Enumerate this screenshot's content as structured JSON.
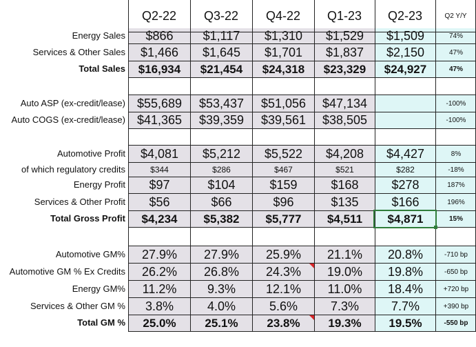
{
  "columns": [
    "Q2-22",
    "Q3-22",
    "Q4-22",
    "Q1-23",
    "Q2-23"
  ],
  "yoy_header": "Q2 Y/Y",
  "rows": [
    {
      "label": "Energy Sales",
      "values": [
        "$866",
        "$1,117",
        "$1,310",
        "$1,529",
        "$1,509"
      ],
      "yoy": "74%",
      "bold": false,
      "small": false
    },
    {
      "label": "Services & Other Sales",
      "values": [
        "$1,466",
        "$1,645",
        "$1,701",
        "$1,837",
        "$2,150"
      ],
      "yoy": "47%",
      "bold": false,
      "small": false
    },
    {
      "label": "Total Sales",
      "values": [
        "$16,934",
        "$21,454",
        "$24,318",
        "$23,329",
        "$24,927"
      ],
      "yoy": "47%",
      "bold": true,
      "small": false
    },
    {
      "label": "Auto ASP (ex-credit/lease)",
      "values": [
        "$55,689",
        "$53,437",
        "$51,056",
        "$47,134",
        ""
      ],
      "yoy": "-100%",
      "bold": false,
      "small": false
    },
    {
      "label": "Auto COGS (ex-credit/lease)",
      "values": [
        "$41,365",
        "$39,359",
        "$39,561",
        "$38,505",
        ""
      ],
      "yoy": "-100%",
      "bold": false,
      "small": false
    },
    {
      "label": "Automotive Profit",
      "values": [
        "$4,081",
        "$5,212",
        "$5,522",
        "$4,208",
        "$4,427"
      ],
      "yoy": "8%",
      "bold": false,
      "small": false
    },
    {
      "label": "of which regulatory credits",
      "values": [
        "$344",
        "$286",
        "$467",
        "$521",
        "$282"
      ],
      "yoy": "-18%",
      "bold": false,
      "small": true
    },
    {
      "label": "Energy Profit",
      "values": [
        "$97",
        "$104",
        "$159",
        "$168",
        "$278"
      ],
      "yoy": "187%",
      "bold": false,
      "small": false
    },
    {
      "label": "Services & Other Profit",
      "values": [
        "$56",
        "$66",
        "$96",
        "$135",
        "$166"
      ],
      "yoy": "196%",
      "bold": false,
      "small": false
    },
    {
      "label": "Total Gross Profit",
      "values": [
        "$4,234",
        "$5,382",
        "$5,777",
        "$4,511",
        "$4,871"
      ],
      "yoy": "15%",
      "bold": true,
      "small": false
    },
    {
      "label": "Automotive GM%",
      "values": [
        "27.9%",
        "27.9%",
        "25.9%",
        "21.1%",
        "20.8%"
      ],
      "yoy": "-710 bp",
      "bold": false,
      "small": false
    },
    {
      "label": "Automotive GM % Ex Credits",
      "values": [
        "26.2%",
        "26.8%",
        "24.3%",
        "19.0%",
        "19.8%"
      ],
      "yoy": "-650 bp",
      "bold": false,
      "small": false
    },
    {
      "label": "Energy GM%",
      "values": [
        "11.2%",
        "9.3%",
        "12.1%",
        "11.0%",
        "18.4%"
      ],
      "yoy": "+720 bp",
      "bold": false,
      "small": false
    },
    {
      "label": "Services & Other GM %",
      "values": [
        "3.8%",
        "4.0%",
        "5.6%",
        "7.3%",
        "7.7%"
      ],
      "yoy": "+390 bp",
      "bold": false,
      "small": false
    },
    {
      "label": "Total GM %",
      "values": [
        "25.0%",
        "25.1%",
        "23.8%",
        "19.3%",
        "19.5%"
      ],
      "yoy": "-550 bp",
      "bold": true,
      "small": false
    }
  ],
  "colors": {
    "grey_fill": "#e4e1e7",
    "cyan_fill": "#def6f6",
    "comment_marker": "#d9262a",
    "selection": "#2f7d3a"
  }
}
